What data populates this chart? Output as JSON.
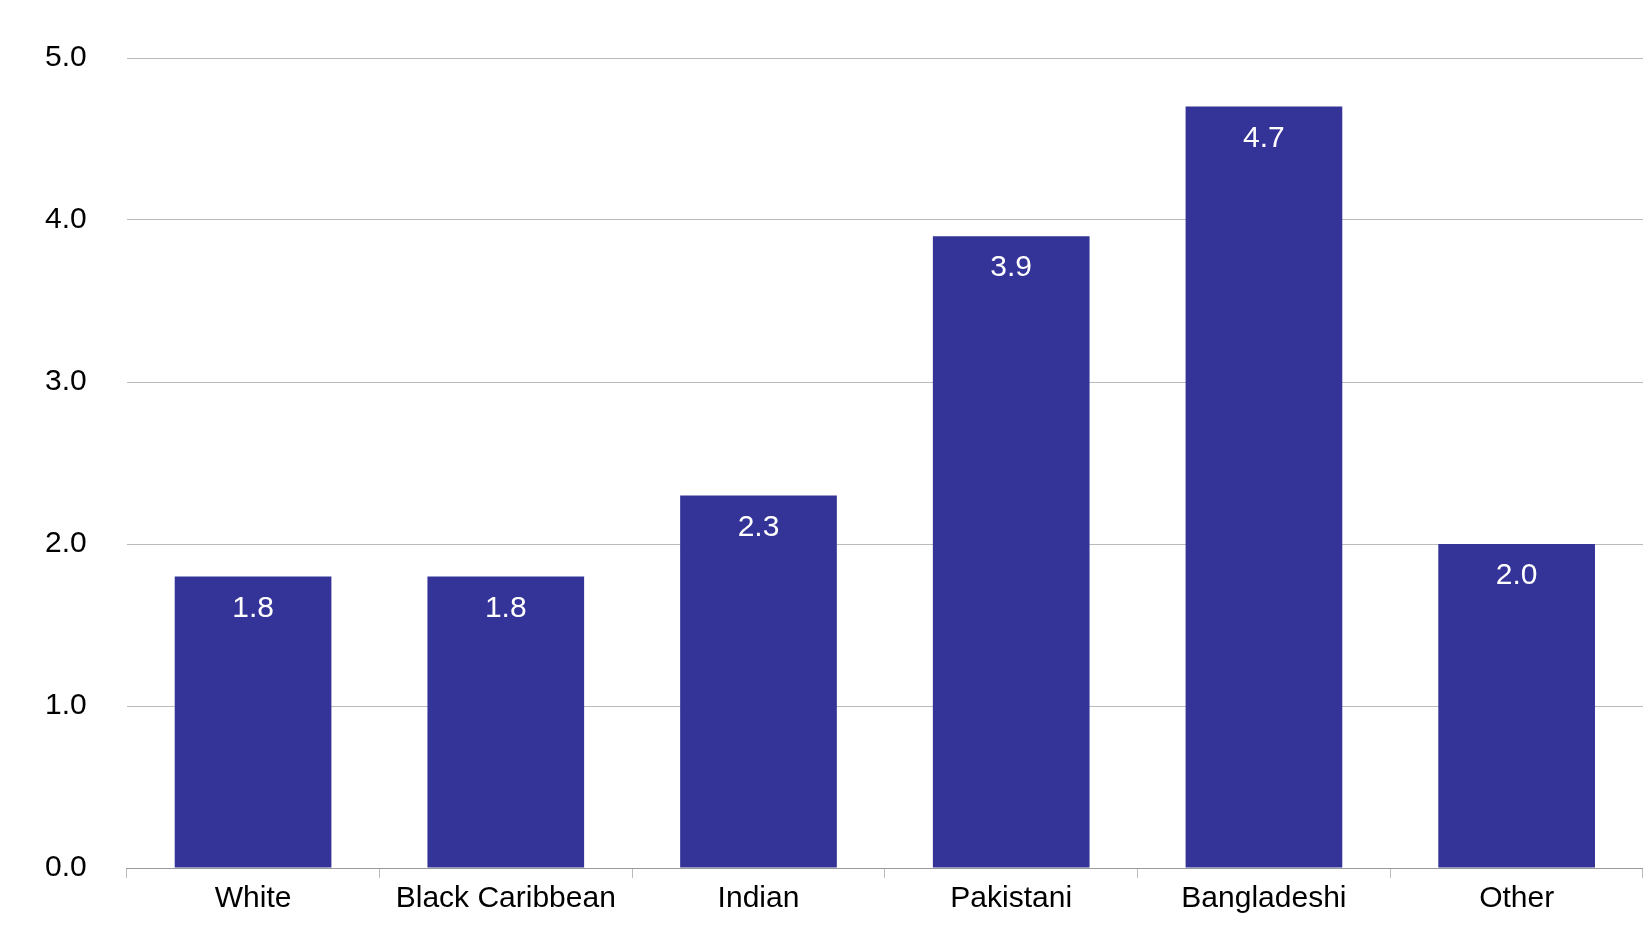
{
  "chart_data": {
    "type": "bar",
    "categories": [
      "White",
      "Black Caribbean",
      "Indian",
      "Pakistani",
      "Bangladeshi",
      "Other"
    ],
    "values": [
      1.8,
      1.8,
      2.3,
      3.9,
      4.7,
      2.0
    ],
    "color": "#343397",
    "ylim": [
      0,
      5
    ],
    "yticks": [
      {
        "value": 0,
        "label": "0.0"
      },
      {
        "value": 1,
        "label": "1.0"
      },
      {
        "value": 2,
        "label": "2.0"
      },
      {
        "value": 3,
        "label": "3.0"
      },
      {
        "value": 4,
        "label": "4.0"
      },
      {
        "value": 5,
        "label": "5.0"
      }
    ],
    "grid": "y",
    "value_labels": [
      "1.8",
      "1.8",
      "2.3",
      "3.9",
      "4.7",
      "2.0"
    ]
  }
}
